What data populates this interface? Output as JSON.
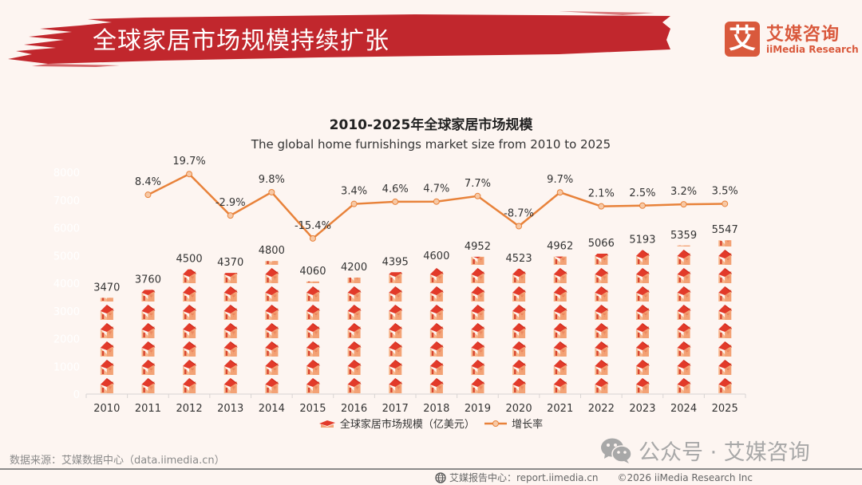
{
  "header": {
    "title": "全球家居市场规模持续扩张",
    "brand_color": "#c1272d"
  },
  "logo": {
    "glyph": "艾",
    "name_cn": "艾媒咨询",
    "name_en": "iiMedia Research",
    "color": "#d9593c"
  },
  "chart_data": {
    "type": "bar",
    "title": "2010-2025年全球家居市场规模",
    "subtitle": "The global home furnishings market size from 2010 to 2025",
    "categories": [
      "2010",
      "2011",
      "2012",
      "2013",
      "2014",
      "2015",
      "2016",
      "2017",
      "2018",
      "2019",
      "2020",
      "2021",
      "2022",
      "2023",
      "2024",
      "2025"
    ],
    "series": [
      {
        "name": "全球家居市场规模（亿美元）",
        "type": "pictorial-bar",
        "icon": "house-icon",
        "values": [
          3470,
          3760,
          4500,
          4370,
          4800,
          4060,
          4200,
          4395,
          4600,
          4952,
          4523,
          4962,
          5066,
          5193,
          5359,
          5547
        ]
      },
      {
        "name": "增长率",
        "type": "line",
        "unit": "%",
        "color": "#e8823a",
        "values": [
          null,
          8.4,
          19.7,
          -2.9,
          9.8,
          -15.4,
          3.4,
          4.6,
          4.7,
          7.7,
          -8.7,
          9.7,
          2.1,
          2.5,
          3.2,
          3.5
        ]
      }
    ],
    "bar_labels": [
      "3470",
      "3760",
      "4500",
      "4370",
      "4800",
      "4060",
      "4200",
      "4395",
      "4600",
      "4952",
      "4523",
      "4962",
      "5066",
      "5193",
      "5359",
      "5547"
    ],
    "line_labels": [
      "",
      "8.4%",
      "19.7%",
      "-2.9%",
      "9.8%",
      "-15.4%",
      "3.4%",
      "4.6%",
      "4.7%",
      "7.7%",
      "-8.7%",
      "9.7%",
      "2.1%",
      "2.5%",
      "3.2%",
      "3.5%"
    ],
    "y_ticks": [
      "0",
      "1000",
      "2000",
      "3000",
      "4000",
      "5000",
      "6000",
      "7000",
      "8000"
    ],
    "ylim": [
      0,
      8000
    ],
    "y2lim": [
      -30,
      25
    ],
    "xlabel": "",
    "ylabel": "",
    "grid": false,
    "legend": "bottom-center"
  },
  "legend": {
    "bar_label": "全球家居市场规模（亿美元）",
    "line_label": "增长率"
  },
  "footer": {
    "source": "数据来源：艾媒数据中心（data.iimedia.cn）",
    "wechat": "公众号 · 艾媒咨询",
    "report_center": "艾媒报告中心：report.iimedia.cn",
    "copyright": "©2026  iiMedia Research  Inc"
  }
}
